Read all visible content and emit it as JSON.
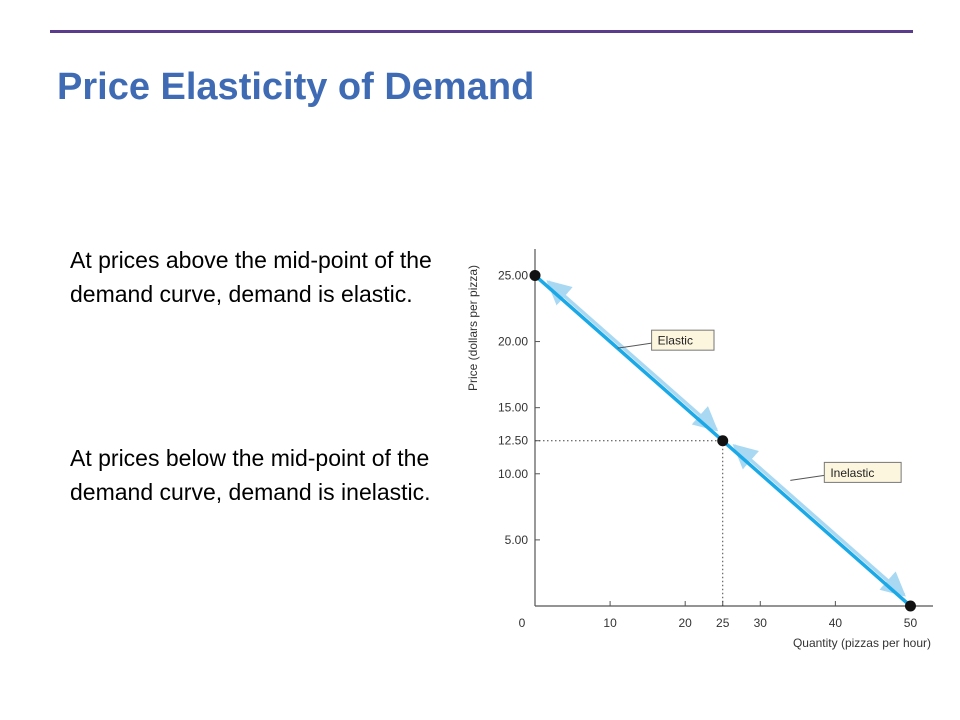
{
  "slide": {
    "title": "Price Elasticity of Demand",
    "paragraphs": [
      "At prices above the mid-point of the demand curve, demand is elastic.",
      "At prices below the mid-point of the demand curve, demand is inelastic."
    ],
    "colors": {
      "title": "#3f6bb4",
      "rule": "#5b3b8c"
    }
  },
  "chart_data": {
    "type": "line",
    "xlabel": "Quantity (pizzas per hour)",
    "ylabel": "Price (dollars per pizza)",
    "xlim": [
      0,
      53
    ],
    "ylim": [
      0,
      27
    ],
    "x_ticks": [
      10,
      20,
      25,
      30,
      40,
      50
    ],
    "y_ticks": [
      5,
      10,
      12.5,
      15,
      20,
      25
    ],
    "x_tick_labels": [
      "10",
      "20",
      "25",
      "30",
      "40",
      "50"
    ],
    "y_tick_labels": [
      "5.00",
      "10.00",
      "12.50",
      "15.00",
      "20.00",
      "25.00"
    ],
    "origin_label": "0",
    "series": [
      {
        "points": [
          [
            0,
            25
          ],
          [
            50,
            0
          ]
        ],
        "color": "#1aa9e6"
      }
    ],
    "markers": [
      [
        0,
        25
      ],
      [
        25,
        12.5
      ],
      [
        50,
        0
      ]
    ],
    "midpoint": [
      25,
      12.5
    ],
    "annotations": [
      {
        "text": "Elastic",
        "point": [
          11,
          19.5
        ]
      },
      {
        "text": "Inelastic",
        "point": [
          34,
          9.5
        ]
      }
    ],
    "annotation_fill": "#fdf6df",
    "grid": false
  }
}
